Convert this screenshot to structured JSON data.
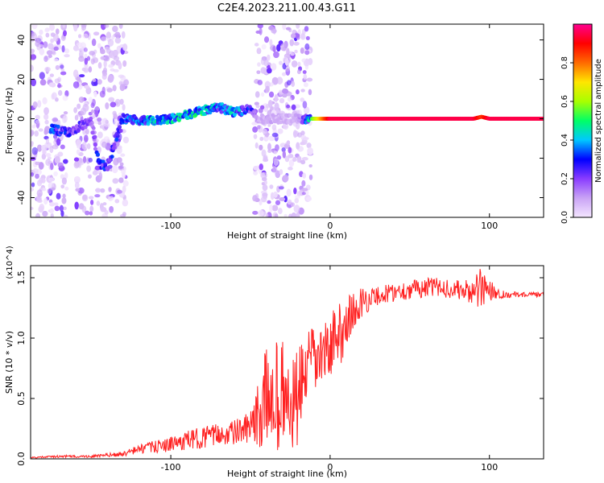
{
  "title": "C2E4.2023.211.00.43.G11",
  "chart_data": [
    {
      "type": "heatmap",
      "xlabel": "Height of straight line (km)",
      "ylabel": "Frequency (Hz)",
      "xlim": [
        -188,
        134
      ],
      "ylim": [
        -50,
        48
      ],
      "xticks": [
        -100,
        0,
        100
      ],
      "xtick_labels": [
        "-100",
        "0",
        "100"
      ],
      "yticks": [
        -40,
        -20,
        0,
        20,
        40
      ],
      "ytick_labels": [
        "-40",
        "-20",
        "0",
        "20",
        "40"
      ],
      "colorbar": {
        "label": "Normalized spectral amplitude",
        "range": [
          0,
          1
        ],
        "ticks": [
          0.0,
          0.2,
          0.4,
          0.6,
          0.8
        ],
        "tick_labels": [
          "0.0",
          "0.2",
          "0.4",
          "0.6",
          "0.8"
        ],
        "colors": [
          "#f4e6ff",
          "#c9a3f5",
          "#8a3cff",
          "#0000ff",
          "#00c8ff",
          "#00ff66",
          "#a8ff00",
          "#ffe600",
          "#ff6a00",
          "#ff0000",
          "#ff0090"
        ]
      },
      "ridge": {
        "x": [
          -175,
          -165,
          -160,
          -155,
          -150,
          -145,
          -140,
          -130,
          -120,
          -110,
          -100,
          -90,
          -80,
          -70,
          -60,
          -50,
          -45,
          -40,
          -30,
          -20,
          -10,
          0,
          20,
          40,
          60,
          80,
          90,
          95,
          100,
          120,
          134
        ],
        "freq": [
          -5,
          -7,
          -5,
          -3,
          -1,
          -23,
          -24,
          0,
          -1,
          -1,
          0,
          2,
          4,
          6,
          3,
          5,
          0,
          0,
          0,
          0,
          0,
          0,
          0,
          0,
          0,
          0,
          0,
          1,
          0,
          0,
          0
        ],
        "amplitude": [
          0.35,
          0.3,
          0.25,
          0.25,
          0.2,
          0.35,
          0.3,
          0.35,
          0.4,
          0.45,
          0.45,
          0.5,
          0.5,
          0.4,
          0.45,
          0.3,
          0.1,
          0.1,
          0.1,
          0.1,
          0.6,
          0.95,
          0.95,
          0.95,
          0.95,
          0.95,
          0.95,
          0.85,
          0.95,
          0.95,
          0.95
        ]
      },
      "noise_bands": [
        [
          -188,
          -165
        ],
        [
          -160,
          -128
        ],
        [
          -48,
          -12
        ]
      ]
    },
    {
      "type": "line",
      "xlabel": "Height of straight line (km)",
      "ylabel": "SNR (10 * v/v)",
      "y_multiplier": "(x10^4)",
      "xlim": [
        -188,
        134
      ],
      "ylim": [
        0,
        1.6
      ],
      "xticks": [
        -100,
        0,
        100
      ],
      "xtick_labels": [
        "-100",
        "0",
        "100"
      ],
      "yticks": [
        0.0,
        0.5,
        1.0,
        1.5
      ],
      "ytick_labels": [
        "0.0",
        "0.5",
        "1.0",
        "1.5"
      ],
      "color": "#ff2020",
      "x": [
        -188,
        -170,
        -150,
        -130,
        -120,
        -110,
        -100,
        -90,
        -80,
        -70,
        -60,
        -50,
        -45,
        -40,
        -35,
        -30,
        -25,
        -20,
        -15,
        -10,
        -5,
        0,
        5,
        10,
        15,
        20,
        30,
        40,
        50,
        60,
        70,
        80,
        90,
        95,
        100,
        105,
        110,
        120,
        134
      ],
      "y": [
        0.01,
        0.02,
        0.02,
        0.04,
        0.08,
        0.1,
        0.12,
        0.15,
        0.18,
        0.2,
        0.22,
        0.25,
        0.35,
        0.5,
        0.55,
        0.5,
        0.4,
        0.5,
        0.75,
        0.8,
        0.85,
        0.95,
        1.0,
        1.15,
        1.2,
        1.3,
        1.35,
        1.38,
        1.4,
        1.42,
        1.42,
        1.4,
        1.38,
        1.4,
        1.42,
        1.37,
        1.36,
        1.36,
        1.36
      ],
      "spread": [
        0.005,
        0.01,
        0.01,
        0.02,
        0.04,
        0.05,
        0.06,
        0.08,
        0.09,
        0.09,
        0.1,
        0.14,
        0.28,
        0.45,
        0.45,
        0.5,
        0.45,
        0.4,
        0.3,
        0.3,
        0.25,
        0.25,
        0.28,
        0.25,
        0.18,
        0.12,
        0.08,
        0.08,
        0.08,
        0.08,
        0.08,
        0.08,
        0.1,
        0.2,
        0.12,
        0.04,
        0.03,
        0.02,
        0.02
      ]
    }
  ]
}
